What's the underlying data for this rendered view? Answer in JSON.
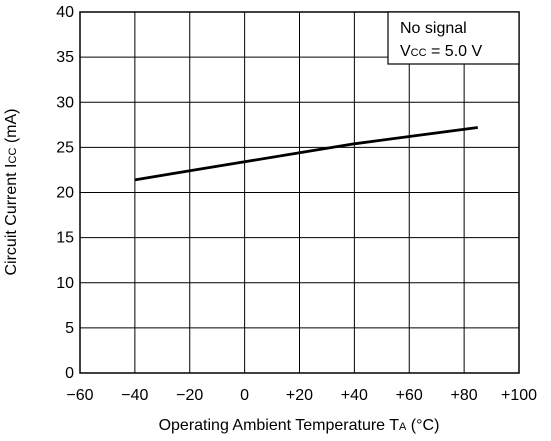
{
  "chart_data": {
    "type": "line",
    "xlabel": {
      "main": "Operating Ambient Temperature  T",
      "subscript": "A",
      "unit": " (°C)"
    },
    "ylabel": {
      "main": "Circuit Current  I",
      "subscript": "CC",
      "unit": " (mA)"
    },
    "xlim": [
      -60,
      100
    ],
    "ylim": [
      0,
      40
    ],
    "x_ticks": [
      {
        "value": -60,
        "label": "−60"
      },
      {
        "value": -40,
        "label": "−40"
      },
      {
        "value": -20,
        "label": "−20"
      },
      {
        "value": 0,
        "label": "0"
      },
      {
        "value": 20,
        "label": "+20"
      },
      {
        "value": 40,
        "label": "+40"
      },
      {
        "value": 60,
        "label": "+60"
      },
      {
        "value": 80,
        "label": "+80"
      },
      {
        "value": 100,
        "label": "+100"
      }
    ],
    "y_ticks": [
      {
        "value": 0,
        "label": "0"
      },
      {
        "value": 5,
        "label": "5"
      },
      {
        "value": 10,
        "label": "10"
      },
      {
        "value": 15,
        "label": "15"
      },
      {
        "value": 20,
        "label": "20"
      },
      {
        "value": 25,
        "label": "25"
      },
      {
        "value": 30,
        "label": "30"
      },
      {
        "value": 35,
        "label": "35"
      },
      {
        "value": 40,
        "label": "40"
      }
    ],
    "grid": true,
    "series": [
      {
        "x": [
          -40,
          -20,
          0,
          20,
          40,
          60,
          85
        ],
        "y": [
          21.4,
          22.4,
          23.4,
          24.4,
          25.4,
          26.2,
          27.2
        ]
      }
    ],
    "annotation": {
      "line1": "No signal",
      "line2_main": "V",
      "line2_sub": "CC",
      "line2_rest": " = 5.0 V",
      "placement": "top-right"
    },
    "colors": {
      "line": "#000000",
      "grid": "#000000",
      "background": "#ffffff"
    }
  }
}
